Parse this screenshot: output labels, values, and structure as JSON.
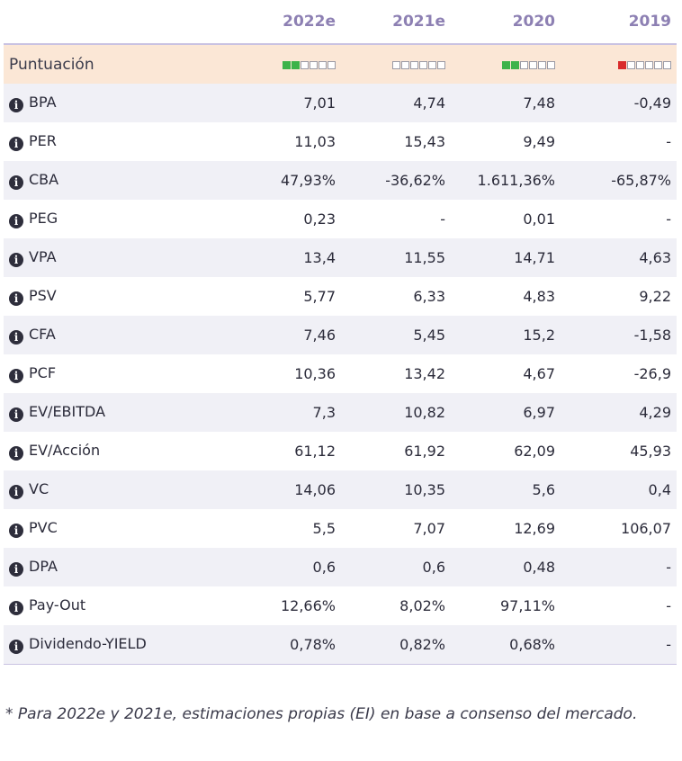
{
  "header": {
    "years": [
      "2022e",
      "2021e",
      "2020",
      "2019"
    ]
  },
  "score": {
    "label": "Puntuación",
    "ratings": [
      {
        "value": 2,
        "max": 6,
        "color": "#3db34a"
      },
      {
        "value": 0,
        "max": 6,
        "color": "#3db34a"
      },
      {
        "value": 2,
        "max": 6,
        "color": "#3db34a"
      },
      {
        "value": 1,
        "max": 6,
        "color": "#d92b2b"
      }
    ]
  },
  "info_icon_glyph": "i",
  "rows": [
    {
      "label": "BPA",
      "values": [
        "7,01",
        "4,74",
        "7,48",
        "-0,49"
      ]
    },
    {
      "label": "PER",
      "values": [
        "11,03",
        "15,43",
        "9,49",
        "-"
      ]
    },
    {
      "label": "CBA",
      "values": [
        "47,93%",
        "-36,62%",
        "1.611,36%",
        "-65,87%"
      ]
    },
    {
      "label": "PEG",
      "values": [
        "0,23",
        "-",
        "0,01",
        "-"
      ]
    },
    {
      "label": "VPA",
      "values": [
        "13,4",
        "11,55",
        "14,71",
        "4,63"
      ]
    },
    {
      "label": "PSV",
      "values": [
        "5,77",
        "6,33",
        "4,83",
        "9,22"
      ]
    },
    {
      "label": "CFA",
      "values": [
        "7,46",
        "5,45",
        "15,2",
        "-1,58"
      ]
    },
    {
      "label": "PCF",
      "values": [
        "10,36",
        "13,42",
        "4,67",
        "-26,9"
      ]
    },
    {
      "label": "EV/EBITDA",
      "values": [
        "7,3",
        "10,82",
        "6,97",
        "4,29"
      ]
    },
    {
      "label": "EV/Acción",
      "values": [
        "61,12",
        "61,92",
        "62,09",
        "45,93"
      ]
    },
    {
      "label": "VC",
      "values": [
        "14,06",
        "10,35",
        "5,6",
        "0,4"
      ]
    },
    {
      "label": "PVC",
      "values": [
        "5,5",
        "7,07",
        "12,69",
        "106,07"
      ]
    },
    {
      "label": "DPA",
      "values": [
        "0,6",
        "0,6",
        "0,48",
        "-"
      ]
    },
    {
      "label": "Pay-Out",
      "values": [
        "12,66%",
        "8,02%",
        "97,11%",
        "-"
      ]
    },
    {
      "label": "Dividendo-YIELD",
      "values": [
        "0,78%",
        "0,82%",
        "0,68%",
        "-"
      ]
    }
  ],
  "footnote": "* Para 2022e y 2021e, estimaciones propias (EI) en base a consenso del mercado."
}
